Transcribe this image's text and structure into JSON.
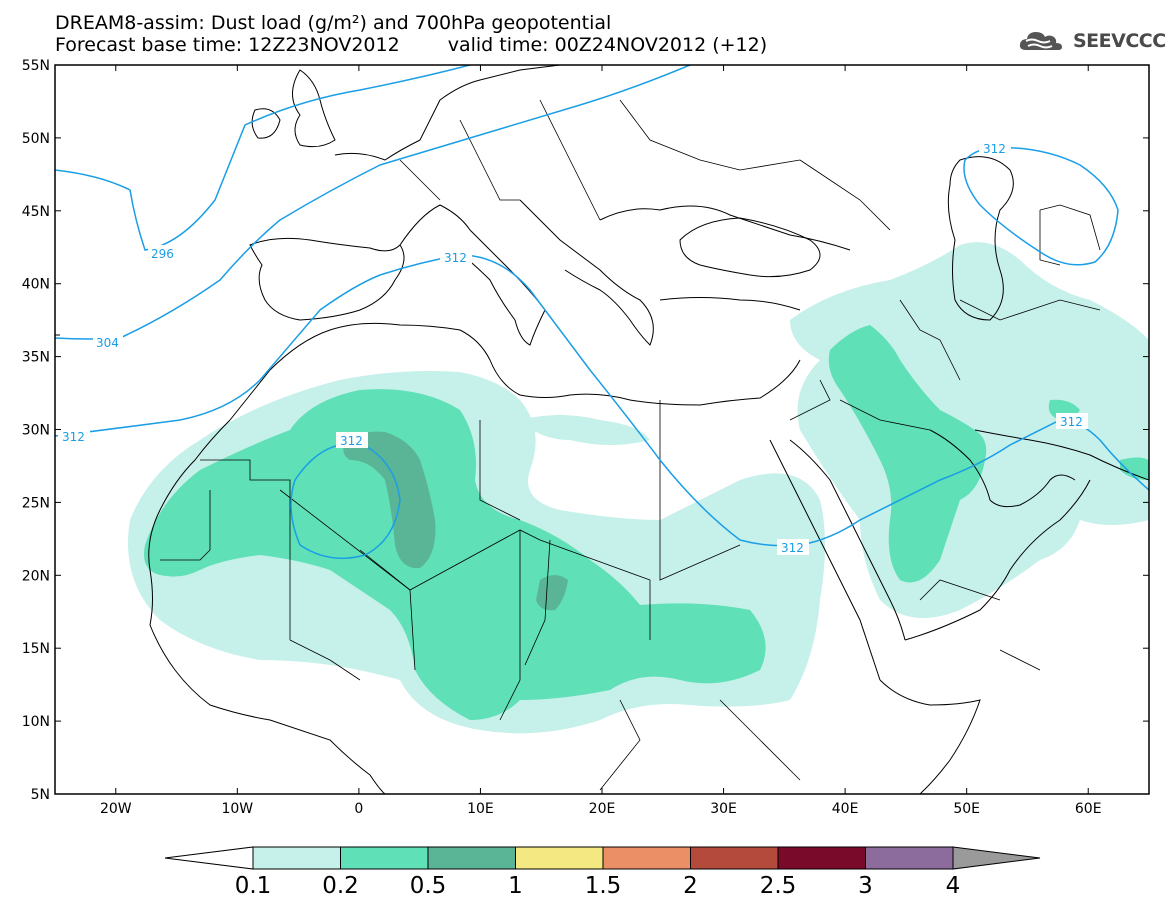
{
  "title": {
    "line1": "DREAM8-assim: Dust load (g/m²) and 700hPa geopotential",
    "forecast_base": "Forecast base time: 12Z23NOV2012",
    "valid_time": "valid time: 00Z24NOV2012 (+12)"
  },
  "logo": {
    "text": "SEEVCCC",
    "icon": "cloud-icon"
  },
  "axes": {
    "lat_labels": [
      "55N",
      "50N",
      "45N",
      "40N",
      "35N",
      "30N",
      "25N",
      "20N",
      "15N",
      "10N",
      "5N"
    ],
    "lon_labels": [
      "20W",
      "10W",
      "0",
      "10E",
      "20E",
      "30E",
      "40E",
      "50E",
      "60E"
    ],
    "lat_range": [
      5,
      55
    ],
    "lon_range": [
      -25,
      65
    ]
  },
  "contour_labels": {
    "c296": "296",
    "c304": "304",
    "c312_west": "312",
    "c312_sahara": "312",
    "c312_med": "312",
    "c312_east": "312",
    "c312_gulf": "312",
    "c312_caspian": "312"
  },
  "colorbar": {
    "labels": [
      "0.1",
      "0.2",
      "0.5",
      "1",
      "1.5",
      "2",
      "2.5",
      "3",
      "4"
    ],
    "colors": [
      "#c6f0ea",
      "#5fe0b6",
      "#5ab596",
      "#f3e882",
      "#eb8f66",
      "#b34a3c",
      "#7a0a2a",
      "#8c6c9c"
    ]
  },
  "colors": {
    "contour": "#1a9ee6",
    "land_border": "#000000",
    "dust_light": "#c6f0ea",
    "dust_medium": "#5fe0b6",
    "dust_heavy": "#5ab596"
  }
}
